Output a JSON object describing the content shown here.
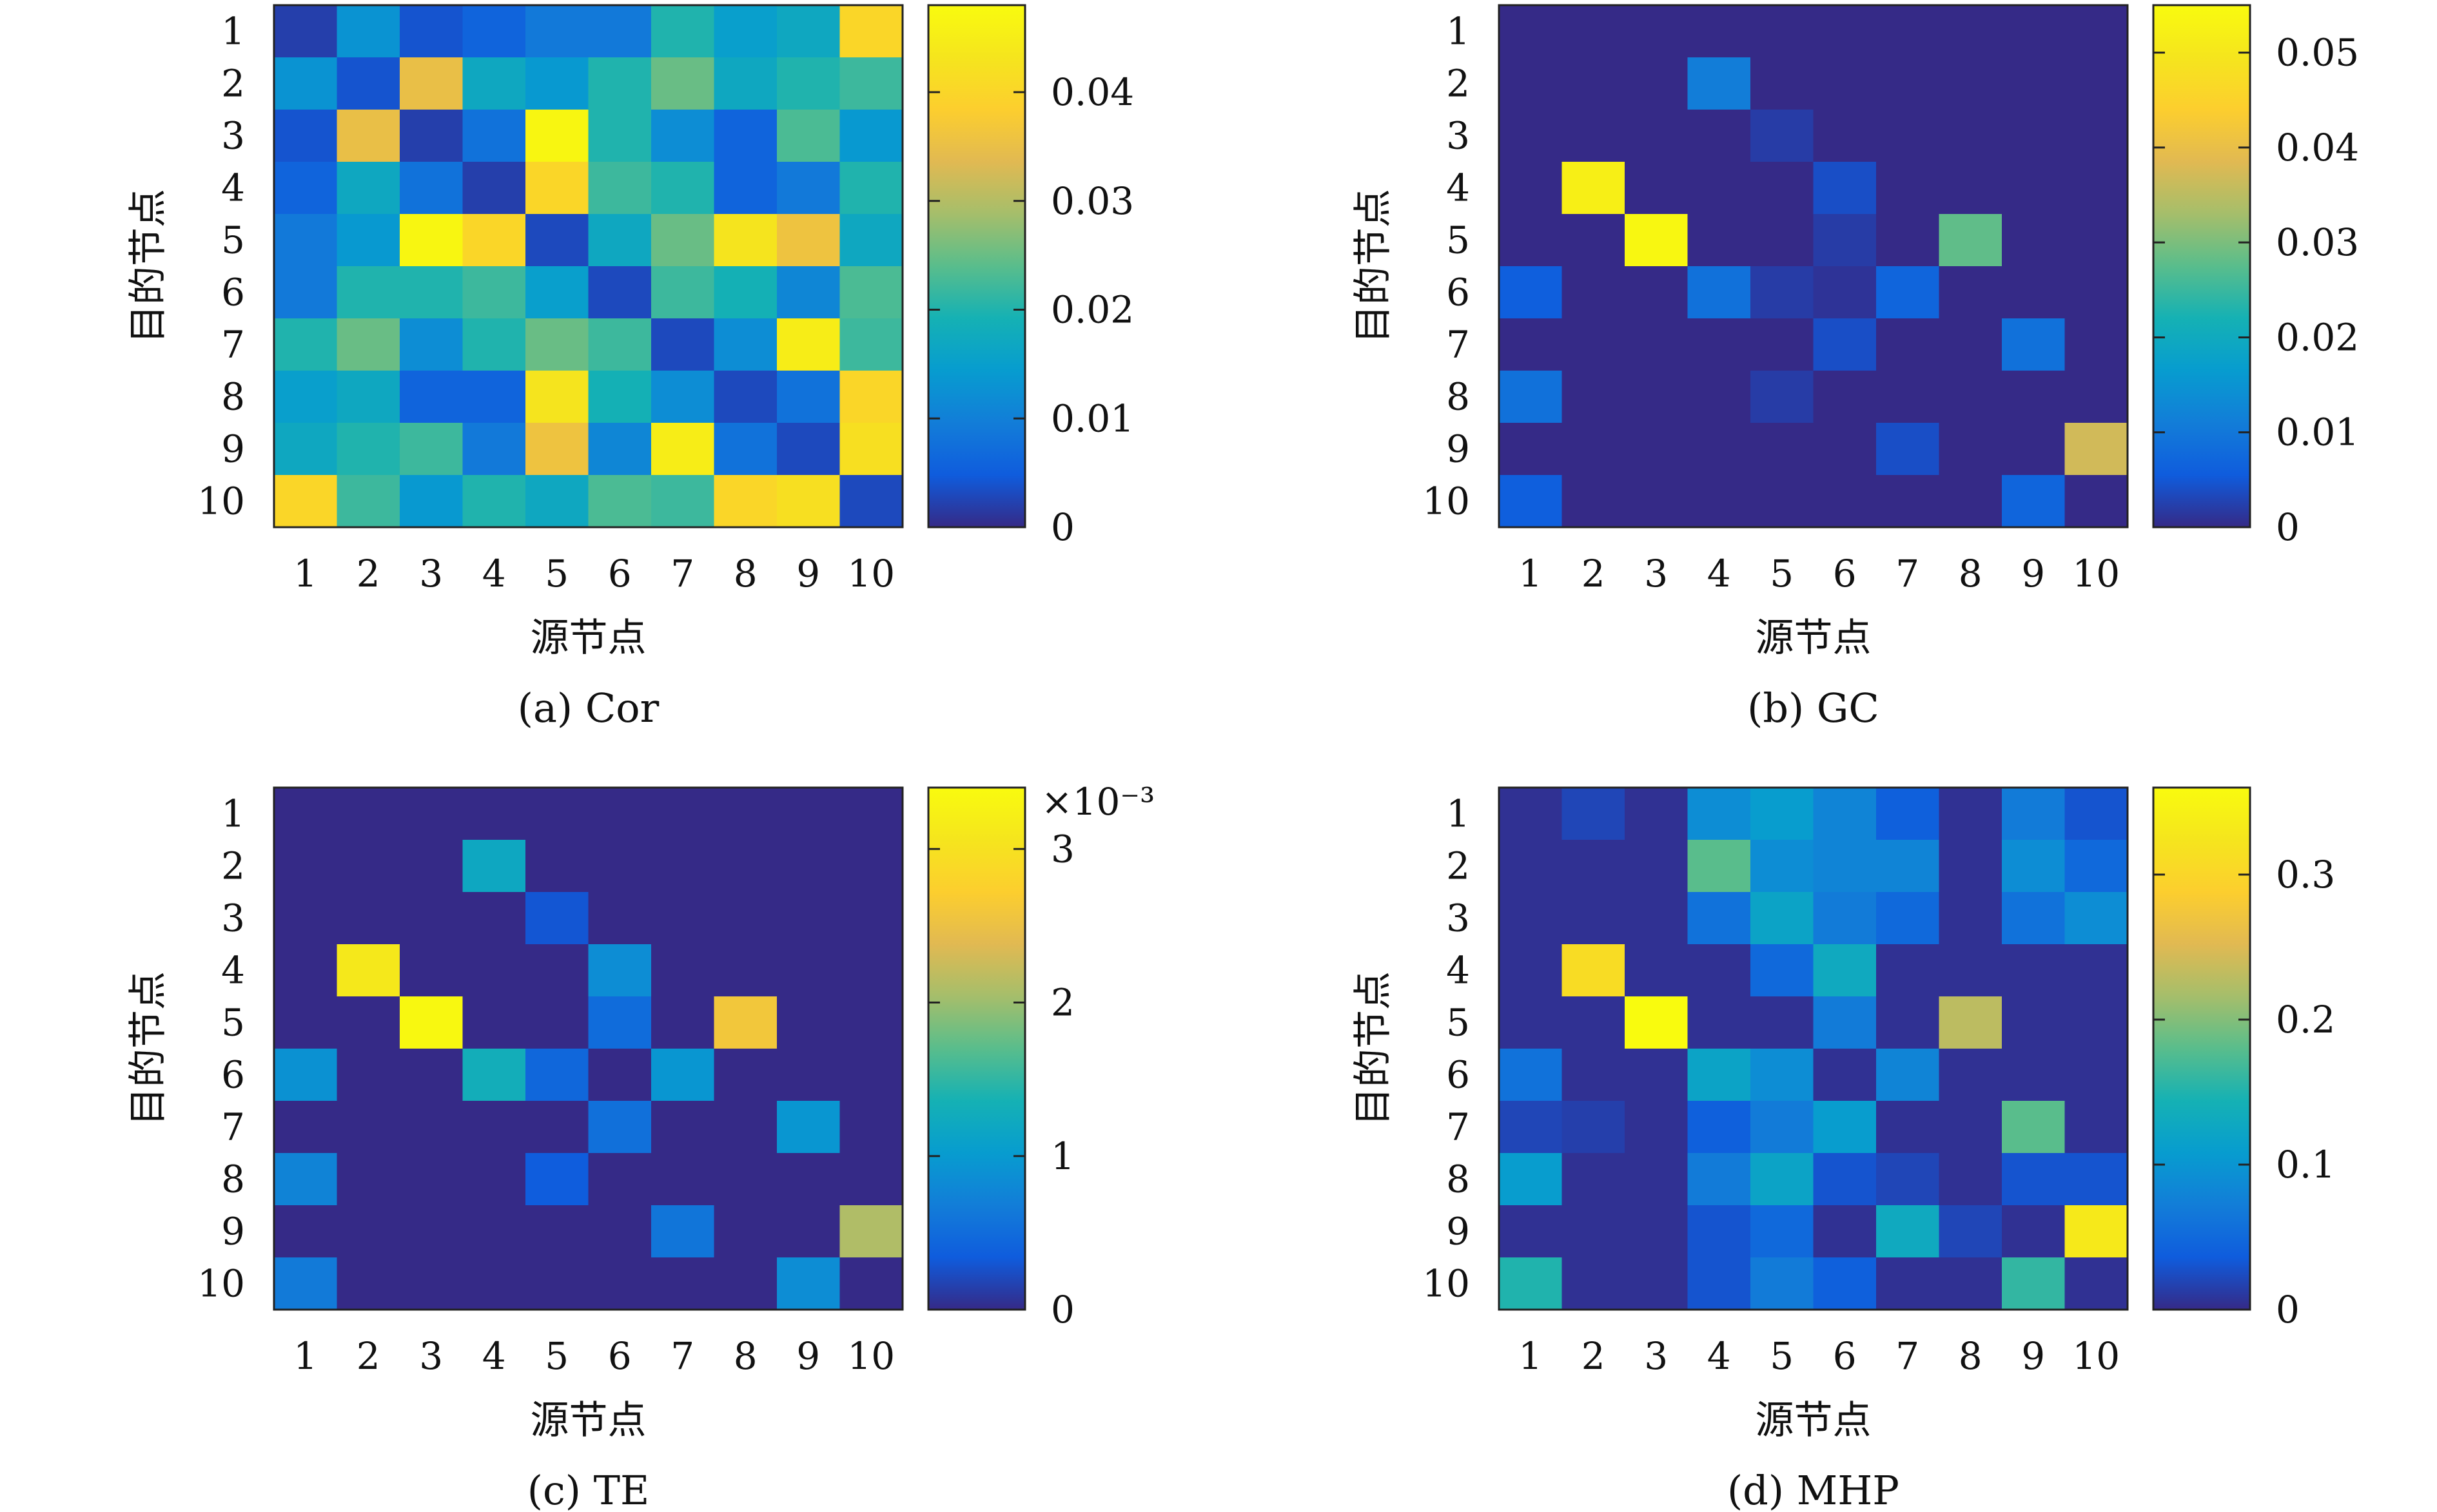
{
  "chart_data": [
    {
      "type": "heatmap",
      "caption": "(a) Cor",
      "xlabel": "源节点",
      "ylabel": "目的节点",
      "x_categories": [
        "1",
        "2",
        "3",
        "4",
        "5",
        "6",
        "7",
        "8",
        "9",
        "10"
      ],
      "y_categories": [
        "1",
        "2",
        "3",
        "4",
        "5",
        "6",
        "7",
        "8",
        "9",
        "10"
      ],
      "vmin": 0,
      "vmax": 0.048,
      "colorbar_ticks": [
        {
          "value": 0,
          "label": "0"
        },
        {
          "value": 0.01,
          "label": "0.01"
        },
        {
          "value": 0.02,
          "label": "0.02"
        },
        {
          "value": 0.03,
          "label": "0.03"
        },
        {
          "value": 0.04,
          "label": "0.04"
        }
      ],
      "colorbar_exponent": "",
      "values": [
        [
          0.002,
          0.013,
          0.004,
          0.006,
          0.009,
          0.009,
          0.02,
          0.015,
          0.017,
          0.04
        ],
        [
          0.013,
          0.004,
          0.035,
          0.017,
          0.014,
          0.02,
          0.025,
          0.017,
          0.02,
          0.022
        ],
        [
          0.004,
          0.035,
          0.002,
          0.008,
          0.047,
          0.02,
          0.012,
          0.006,
          0.023,
          0.014
        ],
        [
          0.006,
          0.017,
          0.008,
          0.002,
          0.04,
          0.022,
          0.02,
          0.006,
          0.009,
          0.02
        ],
        [
          0.009,
          0.014,
          0.047,
          0.04,
          0.003,
          0.017,
          0.025,
          0.043,
          0.036,
          0.017
        ],
        [
          0.009,
          0.02,
          0.02,
          0.022,
          0.015,
          0.003,
          0.022,
          0.019,
          0.011,
          0.023
        ],
        [
          0.02,
          0.025,
          0.012,
          0.02,
          0.025,
          0.022,
          0.003,
          0.012,
          0.045,
          0.022
        ],
        [
          0.015,
          0.017,
          0.006,
          0.006,
          0.043,
          0.019,
          0.012,
          0.003,
          0.008,
          0.04
        ],
        [
          0.017,
          0.02,
          0.022,
          0.009,
          0.036,
          0.011,
          0.045,
          0.008,
          0.003,
          0.042
        ],
        [
          0.04,
          0.022,
          0.014,
          0.02,
          0.017,
          0.023,
          0.022,
          0.04,
          0.042,
          0.003
        ]
      ]
    },
    {
      "type": "heatmap",
      "caption": "(b) GC",
      "xlabel": "源节点",
      "ylabel": "目的节点",
      "x_categories": [
        "1",
        "2",
        "3",
        "4",
        "5",
        "6",
        "7",
        "8",
        "9",
        "10"
      ],
      "y_categories": [
        "1",
        "2",
        "3",
        "4",
        "5",
        "6",
        "7",
        "8",
        "9",
        "10"
      ],
      "vmin": 0,
      "vmax": 0.055,
      "colorbar_ticks": [
        {
          "value": 0,
          "label": "0"
        },
        {
          "value": 0.01,
          "label": "0.01"
        },
        {
          "value": 0.02,
          "label": "0.02"
        },
        {
          "value": 0.03,
          "label": "0.03"
        },
        {
          "value": 0.04,
          "label": "0.04"
        },
        {
          "value": 0.05,
          "label": "0.05"
        }
      ],
      "colorbar_exponent": "",
      "values": [
        [
          0,
          0,
          0,
          0,
          0,
          0,
          0,
          0,
          0,
          0
        ],
        [
          0,
          0,
          0,
          0.011,
          0,
          0,
          0,
          0,
          0,
          0
        ],
        [
          0,
          0,
          0,
          0,
          0.002,
          0,
          0,
          0,
          0,
          0
        ],
        [
          0,
          0.052,
          0,
          0,
          0,
          0.004,
          0,
          0,
          0,
          0
        ],
        [
          0,
          0,
          0.054,
          0,
          0,
          0.002,
          0,
          0.028,
          0,
          0
        ],
        [
          0.006,
          0,
          0,
          0.009,
          0.002,
          0.001,
          0.007,
          0,
          0,
          0
        ],
        [
          0,
          0,
          0,
          0,
          0,
          0.004,
          0,
          0,
          0.009,
          0
        ],
        [
          0.009,
          0,
          0,
          0,
          0.002,
          0,
          0,
          0,
          0,
          0
        ],
        [
          0,
          0,
          0,
          0,
          0,
          0,
          0.004,
          0,
          0,
          0.037
        ],
        [
          0.006,
          0,
          0,
          0,
          0,
          0,
          0,
          0,
          0.007,
          0
        ]
      ]
    },
    {
      "type": "heatmap",
      "caption": "(c) TE",
      "xlabel": "源节点",
      "ylabel": "目的节点",
      "x_categories": [
        "1",
        "2",
        "3",
        "4",
        "5",
        "6",
        "7",
        "8",
        "9",
        "10"
      ],
      "y_categories": [
        "1",
        "2",
        "3",
        "4",
        "5",
        "6",
        "7",
        "8",
        "9",
        "10"
      ],
      "vmin": 0,
      "vmax": 3.4,
      "colorbar_ticks": [
        {
          "value": 0,
          "label": "0"
        },
        {
          "value": 1,
          "label": "1"
        },
        {
          "value": 2,
          "label": "2"
        },
        {
          "value": 3,
          "label": "3"
        }
      ],
      "colorbar_exponent": "×10⁻³",
      "values": [
        [
          0,
          0,
          0,
          0,
          0,
          0,
          0,
          0,
          0,
          0
        ],
        [
          0,
          0,
          0,
          1.2,
          0,
          0,
          0,
          0,
          0,
          0
        ],
        [
          0,
          0,
          0,
          0,
          0.3,
          0,
          0,
          0,
          0,
          0
        ],
        [
          0,
          3.1,
          0,
          0,
          0,
          0.85,
          0,
          0,
          0,
          0
        ],
        [
          0,
          0,
          3.35,
          0,
          0,
          0.5,
          0,
          2.6,
          0,
          0
        ],
        [
          0.9,
          0,
          0,
          1.3,
          0.45,
          0,
          0.95,
          0,
          0,
          0
        ],
        [
          0,
          0,
          0,
          0,
          0,
          0.55,
          0,
          0,
          0.95,
          0
        ],
        [
          0.75,
          0,
          0,
          0,
          0.35,
          0,
          0,
          0,
          0,
          0
        ],
        [
          0,
          0,
          0,
          0,
          0,
          0,
          0.6,
          0,
          0,
          2.1
        ],
        [
          0.65,
          0,
          0,
          0,
          0,
          0,
          0,
          0,
          0.85,
          0
        ]
      ]
    },
    {
      "type": "heatmap",
      "caption": "(d) MHP",
      "xlabel": "源节点",
      "ylabel": "目的节点",
      "x_categories": [
        "1",
        "2",
        "3",
        "4",
        "5",
        "6",
        "7",
        "8",
        "9",
        "10"
      ],
      "y_categories": [
        "1",
        "2",
        "3",
        "4",
        "5",
        "6",
        "7",
        "8",
        "9",
        "10"
      ],
      "vmin": 0,
      "vmax": 0.36,
      "colorbar_ticks": [
        {
          "value": 0,
          "label": "0"
        },
        {
          "value": 0.1,
          "label": "0.1"
        },
        {
          "value": 0.2,
          "label": "0.2"
        },
        {
          "value": 0.3,
          "label": "0.3"
        }
      ],
      "colorbar_exponent": "",
      "values": [
        [
          0.005,
          0.02,
          0.005,
          0.09,
          0.11,
          0.08,
          0.04,
          0.005,
          0.07,
          0.03
        ],
        [
          0.005,
          0.005,
          0.005,
          0.18,
          0.09,
          0.08,
          0.08,
          0.005,
          0.09,
          0.05
        ],
        [
          0.005,
          0.005,
          0.005,
          0.06,
          0.12,
          0.07,
          0.05,
          0.005,
          0.06,
          0.09
        ],
        [
          0.005,
          0.31,
          0.005,
          0.005,
          0.05,
          0.13,
          0.005,
          0.005,
          0.005,
          0.005
        ],
        [
          0.005,
          0.005,
          0.36,
          0.005,
          0.005,
          0.07,
          0.005,
          0.23,
          0.005,
          0.005
        ],
        [
          0.06,
          0.005,
          0.005,
          0.12,
          0.09,
          0.005,
          0.08,
          0.005,
          0.005,
          0.005
        ],
        [
          0.02,
          0.015,
          0.005,
          0.04,
          0.07,
          0.11,
          0.005,
          0.005,
          0.18,
          0.005
        ],
        [
          0.11,
          0.005,
          0.005,
          0.07,
          0.12,
          0.03,
          0.02,
          0.005,
          0.03,
          0.03
        ],
        [
          0.005,
          0.005,
          0.005,
          0.03,
          0.05,
          0.005,
          0.13,
          0.02,
          0.005,
          0.33
        ],
        [
          0.15,
          0.005,
          0.005,
          0.03,
          0.07,
          0.04,
          0.005,
          0.005,
          0.16,
          0.005
        ]
      ]
    }
  ]
}
